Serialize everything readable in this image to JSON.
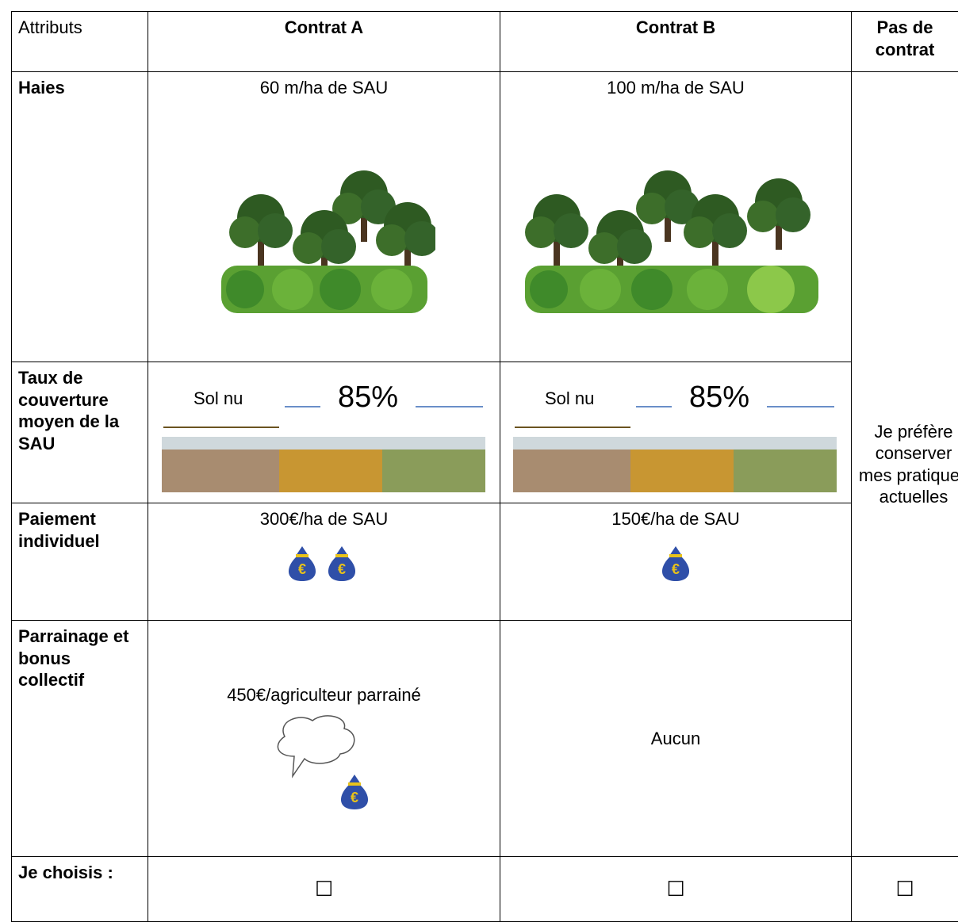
{
  "header": [
    "Attributs",
    "Contrat A",
    "Contrat B",
    "Pas de contrat"
  ],
  "rows": [
    {
      "label": "Haies",
      "cells": [
        "60 m/ha de SAU",
        "100 m/ha de SAU"
      ]
    },
    {
      "label": "Taux de couverture moyen de la SAU",
      "cells": [
        {
          "bare": "Sol nu",
          "cover": "85%"
        },
        {
          "bare": "Sol nu",
          "cover": "85%"
        }
      ]
    },
    {
      "label": "Paiement individuel",
      "cells": [
        "300€/ha de SAU",
        "150€/ha de SAU"
      ]
    },
    {
      "label": "Parrainage et bonus collectif",
      "cells": [
        "450€/agriculteur parrainé",
        "Aucun"
      ]
    },
    {
      "label": "Je choisis :",
      "cells": [
        "☐",
        "☐",
        "☐"
      ]
    }
  ],
  "no_contract": "Je préfère conserver mes pratiques actuelles"
}
